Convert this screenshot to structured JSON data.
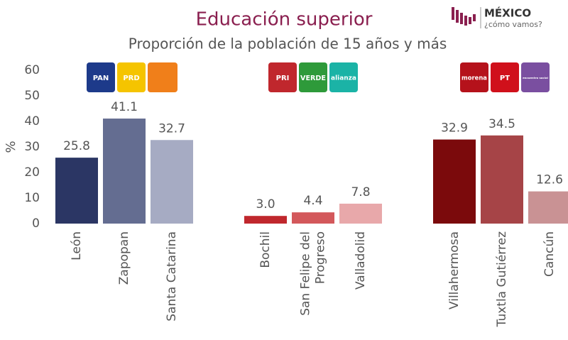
{
  "chart_data": {
    "type": "bar",
    "title": "Educación superior",
    "subtitle": "Proporción de la población de 15 años y más",
    "y_label": "%",
    "brand": {
      "name": "MÉXICO",
      "tagline": "¿cómo vamos?"
    },
    "logos": [
      [
        "PAN",
        "PRD"
      ],
      [
        "PRI",
        "VERDE",
        "alianza"
      ],
      [
        "morena",
        "PT",
        "encuentro social"
      ]
    ],
    "categories": [
      "León",
      "Zapopan",
      "Santa Catarina",
      "Bochil",
      "San Felipe del Progreso",
      "Valladolid",
      "Villahermosa",
      "Tuxtla Gutiérrez",
      "Cancún"
    ],
    "values": [
      25.8,
      41.1,
      32.7,
      3.0,
      4.4,
      7.8,
      32.9,
      34.5,
      12.6
    ],
    "value_labels": [
      "25.8",
      "41.1",
      "32.7",
      "3.0",
      "4.4",
      "7.8",
      "32.9",
      "34.5",
      "12.6"
    ],
    "colors": [
      "#2b3664",
      "#646d91",
      "#a6abc3",
      "#c0272d",
      "#d3585b",
      "#e8a8aa",
      "#7b0a0c",
      "#a64447",
      "#c99294"
    ],
    "ylim": [
      0,
      60
    ],
    "yticks": [
      0,
      10,
      20,
      30,
      40,
      50,
      60
    ],
    "grid": false
  }
}
